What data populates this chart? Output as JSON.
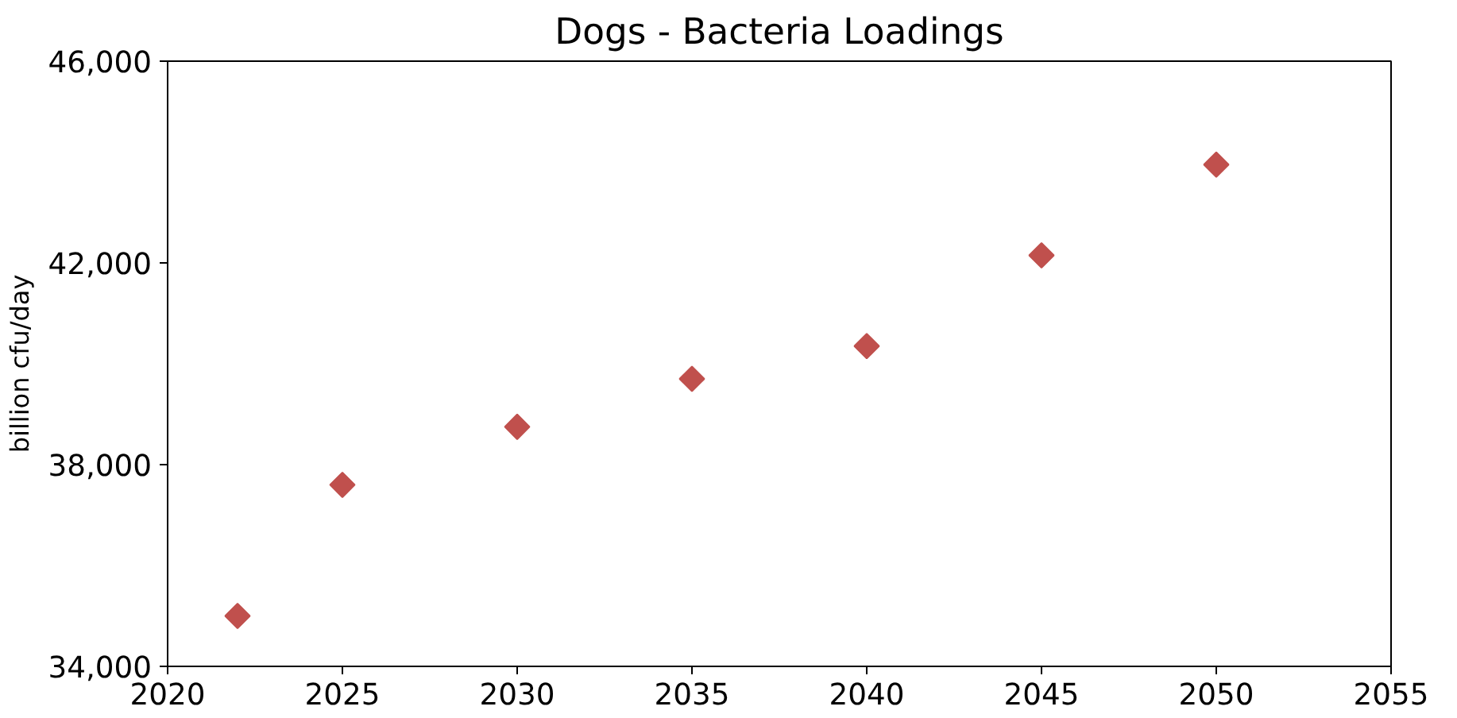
{
  "chart_data": {
    "type": "scatter",
    "title": "Dogs - Bacteria Loadings",
    "ylabel": "billion cfu/day",
    "x": [
      2022,
      2025,
      2030,
      2035,
      2040,
      2045,
      2050
    ],
    "values": [
      35000,
      37600,
      38750,
      39700,
      40350,
      42150,
      43950
    ],
    "color": "#c0504d",
    "marker": "diamond",
    "grid": false,
    "xlim": [
      2020,
      2055
    ],
    "xticks": [
      2020,
      2025,
      2030,
      2035,
      2040,
      2045,
      2050,
      2055
    ],
    "ylim": [
      34000,
      46000
    ],
    "yticks": [
      {
        "value": 34000,
        "label": "34,000"
      },
      {
        "value": 38000,
        "label": "38,000"
      },
      {
        "value": 42000,
        "label": "42,000"
      },
      {
        "value": 46000,
        "label": "46,000"
      }
    ]
  }
}
